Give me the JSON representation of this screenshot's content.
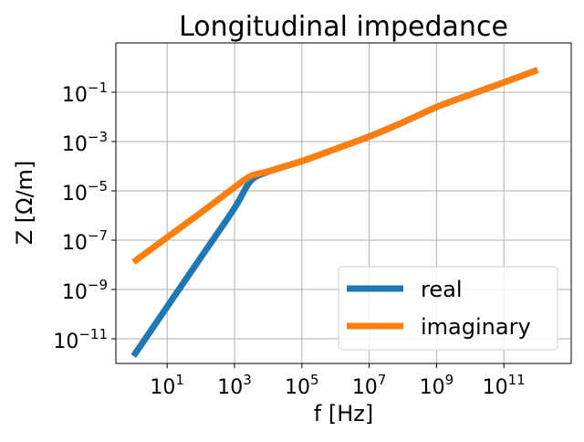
{
  "chart_data": {
    "type": "line",
    "title": "Longitudinal impedance",
    "xlabel": "f [Hz]",
    "ylabel": "Z [Ω/m]",
    "xscale": "log",
    "yscale": "log",
    "xlim": [
      0.3,
      10000000000000.0
    ],
    "ylim": [
      1e-12,
      10
    ],
    "grid": true,
    "legend_position": "lower-right",
    "x_ticks": [
      {
        "value": 10,
        "base": "10",
        "exp": "1"
      },
      {
        "value": 1000,
        "base": "10",
        "exp": "3"
      },
      {
        "value": 100000,
        "base": "10",
        "exp": "5"
      },
      {
        "value": 10000000,
        "base": "10",
        "exp": "7"
      },
      {
        "value": 1000000000,
        "base": "10",
        "exp": "9"
      },
      {
        "value": 100000000000,
        "base": "10",
        "exp": "11"
      }
    ],
    "y_ticks": [
      {
        "value": 1e-11,
        "base": "10",
        "exp": "−11"
      },
      {
        "value": 1e-09,
        "base": "10",
        "exp": "−9"
      },
      {
        "value": 1e-07,
        "base": "10",
        "exp": "−7"
      },
      {
        "value": 1e-05,
        "base": "10",
        "exp": "−5"
      },
      {
        "value": 0.001,
        "base": "10",
        "exp": "−3"
      },
      {
        "value": 0.1,
        "base": "10",
        "exp": "−1"
      }
    ],
    "series": [
      {
        "name": "real",
        "color": "#1f77b4",
        "x": [
          1,
          10,
          100,
          1000,
          3000,
          10000,
          100000,
          1000000,
          10000000,
          100000000,
          1000000000,
          10000000000,
          100000000000,
          1000000000000
        ],
        "y": [
          2e-12,
          2e-10,
          2e-08,
          2e-06,
          2.5e-05,
          6e-05,
          0.00016,
          0.0005,
          0.0016,
          0.006,
          0.025,
          0.08,
          0.25,
          0.8
        ]
      },
      {
        "name": "imaginary",
        "color": "#ff7f0e",
        "x": [
          1,
          10,
          100,
          1000,
          3000,
          10000,
          100000,
          1000000,
          10000000,
          100000000,
          1000000000,
          10000000000,
          100000000000,
          1000000000000
        ],
        "y": [
          1.3e-08,
          1.3e-07,
          1.3e-06,
          1.4e-05,
          4e-05,
          6.2e-05,
          0.00016,
          0.0005,
          0.0016,
          0.006,
          0.025,
          0.08,
          0.25,
          0.8
        ]
      }
    ]
  }
}
